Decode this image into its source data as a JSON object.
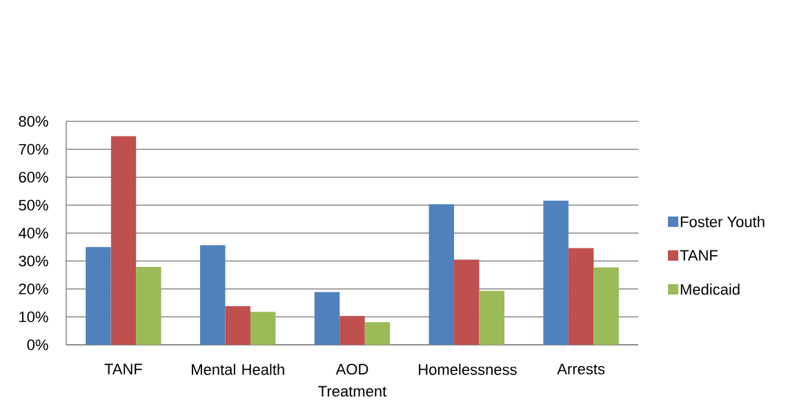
{
  "chart_data": {
    "type": "bar",
    "categories": [
      "TANF",
      "Mental Health",
      "AOD Treatment",
      "Homelessness",
      "Arrests"
    ],
    "series": [
      {
        "name": "Foster Youth",
        "color": "#4f81bd",
        "values": [
          35.0,
          35.7,
          18.9,
          50.3,
          51.6
        ]
      },
      {
        "name": "TANF",
        "color": "#c0504d",
        "values": [
          74.7,
          13.8,
          10.3,
          30.5,
          34.6
        ]
      },
      {
        "name": "Medicaid",
        "color": "#9bbb59",
        "values": [
          27.9,
          11.8,
          8.1,
          19.3,
          27.7
        ]
      }
    ],
    "ylim": [
      0,
      80
    ],
    "yticks": [
      {
        "value": 0,
        "label": "0%"
      },
      {
        "value": 10,
        "label": "10%"
      },
      {
        "value": 20,
        "label": "20%"
      },
      {
        "value": 30,
        "label": "30%"
      },
      {
        "value": 40,
        "label": "40%"
      },
      {
        "value": 50,
        "label": "50%"
      },
      {
        "value": 60,
        "label": "60%"
      },
      {
        "value": 70,
        "label": "70%"
      },
      {
        "value": 80,
        "label": "80%"
      }
    ],
    "grid": "y",
    "legend": "right"
  }
}
